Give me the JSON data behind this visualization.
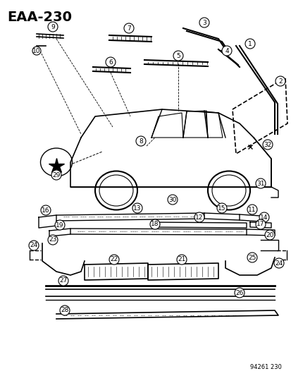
{
  "title": "EAA-230",
  "footer": "94261 230",
  "bg_color": "#ffffff",
  "line_color": "#000000",
  "title_fontsize": 14,
  "label_fontsize": 7.5,
  "fig_width": 4.14,
  "fig_height": 5.33,
  "dpi": 100
}
